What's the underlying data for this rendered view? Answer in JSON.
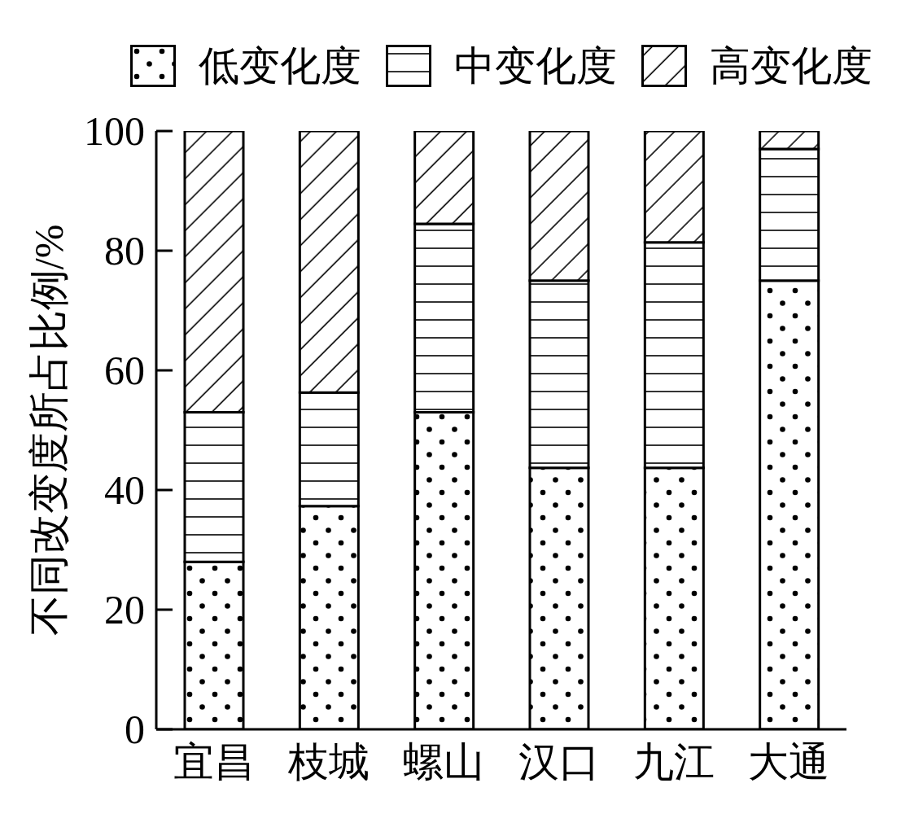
{
  "chart_data": {
    "type": "bar",
    "stacked": true,
    "ylabel": "不同改变度所占比例/%",
    "categories": [
      "宜昌",
      "枝城",
      "螺山",
      "汉口",
      "九江",
      "大通"
    ],
    "series": [
      {
        "name": "低变化度",
        "color": "#000000",
        "values": [
          28,
          37.3,
          53,
          43.7,
          43.7,
          75
        ]
      },
      {
        "name": "中变化度",
        "color": "#000000",
        "values": [
          25,
          19,
          31.5,
          31.3,
          37.7,
          22
        ]
      },
      {
        "name": "高变化度",
        "color": "#000000",
        "values": [
          47,
          43.7,
          15.5,
          25,
          18.6,
          3
        ]
      }
    ],
    "ylim": [
      0,
      100
    ],
    "yticks": [
      0,
      20,
      40,
      60,
      80,
      100
    ],
    "legend": "top"
  }
}
